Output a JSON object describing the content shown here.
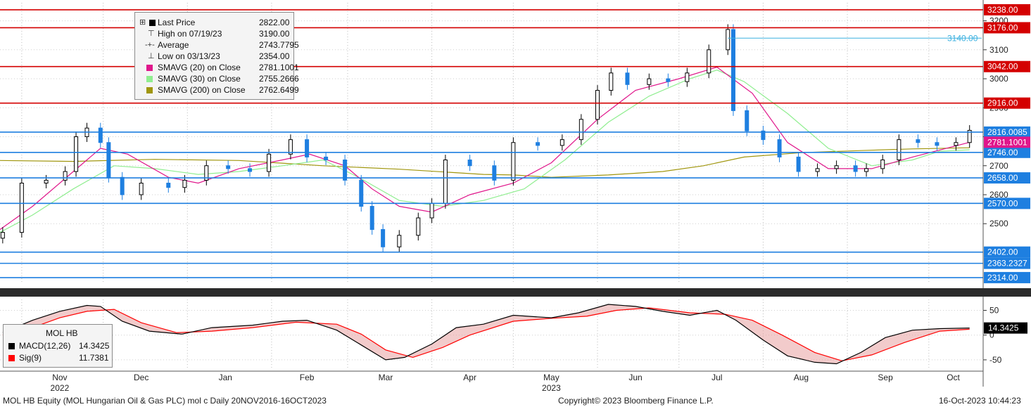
{
  "footer": {
    "left": "MOL HB Equity (MOL Hungarian Oil & Gas PLC) mol c  Daily 20NOV2016-16OCT2023",
    "center": "Copyright© 2023 Bloomberg Finance L.P.",
    "right": "16-Oct-2023 10:44:23"
  },
  "price_legend": {
    "rows": [
      {
        "label": "Last Price",
        "value": "2822.00",
        "marker": "square",
        "color": "#000000"
      },
      {
        "label": "High on 07/19/23",
        "value": "3190.00",
        "marker": "high-glyph"
      },
      {
        "label": "Average",
        "value": "2743.7795",
        "marker": "avg-glyph"
      },
      {
        "label": "Low on 03/13/23",
        "value": "2354.00",
        "marker": "low-glyph"
      },
      {
        "label": "SMAVG (20)  on Close",
        "value": "2781.1001",
        "marker": "square",
        "color": "#e0168b"
      },
      {
        "label": "SMAVG (30)  on Close",
        "value": "2755.2666",
        "marker": "square",
        "color": "#90ee90"
      },
      {
        "label": "SMAVG (200)  on Close",
        "value": "2762.6499",
        "marker": "square",
        "color": "#a0960e"
      }
    ]
  },
  "macd_legend": {
    "title": "MOL HB",
    "rows": [
      {
        "label": "MACD(12,26)",
        "value": "14.3425",
        "color": "#000000"
      },
      {
        "label": "Sig(9)",
        "value": "11.7381",
        "color": "#ff0000"
      }
    ]
  },
  "colors": {
    "up_candle": "#000000",
    "down_candle": "#1e7fe0",
    "sma20": "#e0168b",
    "sma30": "#90ee90",
    "sma200": "#a0960e",
    "macd": "#000000",
    "signal": "#ff0000",
    "level_red": "#d40000",
    "level_blue": "#1e7fe0"
  },
  "chart_data": {
    "type": "candlestick",
    "security": "MOL HB Equity",
    "price_axis": {
      "ticks": [
        "3200",
        "3100",
        "3000",
        "2900",
        "2800",
        "2700",
        "2600",
        "2500"
      ],
      "ylim": [
        2292,
        3262
      ]
    },
    "x_labels": [
      {
        "label": "Nov",
        "year": "2022"
      },
      {
        "label": "Dec"
      },
      {
        "label": "Jan"
      },
      {
        "label": "Feb"
      },
      {
        "label": "Mar"
      },
      {
        "label": "Apr"
      },
      {
        "label": "May",
        "year": "2023"
      },
      {
        "label": "Jun"
      },
      {
        "label": "Jul"
      },
      {
        "label": "Aug"
      },
      {
        "label": "Sep"
      },
      {
        "label": "Oct"
      }
    ],
    "close_series": [
      {
        "date": "2022-10-25",
        "close": 2470
      },
      {
        "date": "2022-11-01",
        "close": 2640
      },
      {
        "date": "2022-11-10",
        "close": 2650
      },
      {
        "date": "2022-11-17",
        "close": 2680
      },
      {
        "date": "2022-11-21",
        "close": 2800
      },
      {
        "date": "2022-11-25",
        "close": 2830
      },
      {
        "date": "2022-11-30",
        "close": 2780
      },
      {
        "date": "2022-12-03",
        "close": 2660
      },
      {
        "date": "2022-12-08",
        "close": 2600
      },
      {
        "date": "2022-12-15",
        "close": 2640
      },
      {
        "date": "2022-12-25",
        "close": 2625
      },
      {
        "date": "2022-12-31",
        "close": 2650
      },
      {
        "date": "2023-01-08",
        "close": 2700
      },
      {
        "date": "2023-01-16",
        "close": 2690
      },
      {
        "date": "2023-01-24",
        "close": 2680
      },
      {
        "date": "2023-01-31",
        "close": 2740
      },
      {
        "date": "2023-02-08",
        "close": 2790
      },
      {
        "date": "2023-02-14",
        "close": 2730
      },
      {
        "date": "2023-02-21",
        "close": 2720
      },
      {
        "date": "2023-02-28",
        "close": 2650
      },
      {
        "date": "2023-03-06",
        "close": 2560
      },
      {
        "date": "2023-03-10",
        "close": 2480
      },
      {
        "date": "2023-03-14",
        "close": 2420
      },
      {
        "date": "2023-03-20",
        "close": 2460
      },
      {
        "date": "2023-03-27",
        "close": 2520
      },
      {
        "date": "2023-04-01",
        "close": 2570
      },
      {
        "date": "2023-04-06",
        "close": 2720
      },
      {
        "date": "2023-04-15",
        "close": 2700
      },
      {
        "date": "2023-04-24",
        "close": 2650
      },
      {
        "date": "2023-05-01",
        "close": 2780
      },
      {
        "date": "2023-05-10",
        "close": 2770
      },
      {
        "date": "2023-05-19",
        "close": 2790
      },
      {
        "date": "2023-05-26",
        "close": 2860
      },
      {
        "date": "2023-06-01",
        "close": 2960
      },
      {
        "date": "2023-06-06",
        "close": 3020
      },
      {
        "date": "2023-06-12",
        "close": 2980
      },
      {
        "date": "2023-06-20",
        "close": 3000
      },
      {
        "date": "2023-06-27",
        "close": 2990
      },
      {
        "date": "2023-07-04",
        "close": 3020
      },
      {
        "date": "2023-07-12",
        "close": 3100
      },
      {
        "date": "2023-07-19",
        "close": 3170
      },
      {
        "date": "2023-07-21",
        "close": 2890
      },
      {
        "date": "2023-07-26",
        "close": 2820
      },
      {
        "date": "2023-08-01",
        "close": 2790
      },
      {
        "date": "2023-08-07",
        "close": 2730
      },
      {
        "date": "2023-08-14",
        "close": 2680
      },
      {
        "date": "2023-08-21",
        "close": 2690
      },
      {
        "date": "2023-08-28",
        "close": 2700
      },
      {
        "date": "2023-09-04",
        "close": 2680
      },
      {
        "date": "2023-09-08",
        "close": 2690
      },
      {
        "date": "2023-09-14",
        "close": 2720
      },
      {
        "date": "2023-09-20",
        "close": 2790
      },
      {
        "date": "2023-09-27",
        "close": 2780
      },
      {
        "date": "2023-10-04",
        "close": 2770
      },
      {
        "date": "2023-10-11",
        "close": 2780
      },
      {
        "date": "2023-10-16",
        "close": 2822
      }
    ],
    "levels": [
      {
        "value": 3238,
        "label": "3238.00",
        "color": "#d40000"
      },
      {
        "value": 3176,
        "label": "3176.00",
        "color": "#d40000"
      },
      {
        "value": 3042,
        "label": "3042.00",
        "color": "#d40000"
      },
      {
        "value": 2916,
        "label": "2916.00",
        "color": "#d40000"
      },
      {
        "value": 2816.0085,
        "label": "2816.0085",
        "color": "#1e7fe0"
      },
      {
        "value": 2746,
        "label": "2746.00",
        "color": "#1e7fe0"
      },
      {
        "value": 2658,
        "label": "2658.00",
        "color": "#1e7fe0"
      },
      {
        "value": 2570,
        "label": "2570.00",
        "color": "#1e7fe0"
      },
      {
        "value": 2402,
        "label": "2402.00",
        "color": "#1e7fe0"
      },
      {
        "value": 2363.2327,
        "label": "2363.2327",
        "color": "#1e7fe0"
      },
      {
        "value": 2314,
        "label": "2314.00",
        "color": "#1e7fe0"
      }
    ],
    "badges": [
      {
        "label": "2781.1001",
        "color": "#e0168b"
      }
    ],
    "annotation": {
      "value": 3140,
      "label": "3140.00",
      "color": "#3ab0e0"
    },
    "macd_panel": {
      "ticks": [
        "50",
        "0",
        "-50"
      ],
      "ylim": [
        -70,
        72
      ],
      "macd_last": "14.3425",
      "macd": [
        {
          "date": "2022-10-25",
          "v": 5
        },
        {
          "date": "2022-11-05",
          "v": 30
        },
        {
          "date": "2022-11-15",
          "v": 48
        },
        {
          "date": "2022-11-25",
          "v": 60
        },
        {
          "date": "2022-11-30",
          "v": 58
        },
        {
          "date": "2022-12-08",
          "v": 28
        },
        {
          "date": "2022-12-18",
          "v": 8
        },
        {
          "date": "2022-12-30",
          "v": 2
        },
        {
          "date": "2023-01-10",
          "v": 15
        },
        {
          "date": "2023-01-25",
          "v": 20
        },
        {
          "date": "2023-02-05",
          "v": 28
        },
        {
          "date": "2023-02-14",
          "v": 30
        },
        {
          "date": "2023-02-25",
          "v": 10
        },
        {
          "date": "2023-03-06",
          "v": -20
        },
        {
          "date": "2023-03-15",
          "v": -50
        },
        {
          "date": "2023-03-22",
          "v": -45
        },
        {
          "date": "2023-04-01",
          "v": -18
        },
        {
          "date": "2023-04-10",
          "v": 15
        },
        {
          "date": "2023-04-20",
          "v": 22
        },
        {
          "date": "2023-05-01",
          "v": 40
        },
        {
          "date": "2023-05-15",
          "v": 35
        },
        {
          "date": "2023-05-25",
          "v": 45
        },
        {
          "date": "2023-06-05",
          "v": 62
        },
        {
          "date": "2023-06-15",
          "v": 58
        },
        {
          "date": "2023-06-25",
          "v": 48
        },
        {
          "date": "2023-07-05",
          "v": 40
        },
        {
          "date": "2023-07-15",
          "v": 50
        },
        {
          "date": "2023-07-22",
          "v": 30
        },
        {
          "date": "2023-08-01",
          "v": -10
        },
        {
          "date": "2023-08-10",
          "v": -42
        },
        {
          "date": "2023-08-20",
          "v": -55
        },
        {
          "date": "2023-08-28",
          "v": -58
        },
        {
          "date": "2023-09-06",
          "v": -35
        },
        {
          "date": "2023-09-15",
          "v": -5
        },
        {
          "date": "2023-09-25",
          "v": 10
        },
        {
          "date": "2023-10-05",
          "v": 13
        },
        {
          "date": "2023-10-16",
          "v": 14.34
        }
      ],
      "signal": [
        {
          "date": "2022-10-25",
          "v": 0
        },
        {
          "date": "2022-11-05",
          "v": 15
        },
        {
          "date": "2022-11-15",
          "v": 35
        },
        {
          "date": "2022-11-25",
          "v": 48
        },
        {
          "date": "2022-12-05",
          "v": 52
        },
        {
          "date": "2022-12-15",
          "v": 25
        },
        {
          "date": "2022-12-28",
          "v": 5
        },
        {
          "date": "2023-01-10",
          "v": 8
        },
        {
          "date": "2023-01-25",
          "v": 15
        },
        {
          "date": "2023-02-10",
          "v": 26
        },
        {
          "date": "2023-02-25",
          "v": 22
        },
        {
          "date": "2023-03-06",
          "v": 2
        },
        {
          "date": "2023-03-15",
          "v": -30
        },
        {
          "date": "2023-03-25",
          "v": -45
        },
        {
          "date": "2023-04-05",
          "v": -25
        },
        {
          "date": "2023-04-15",
          "v": 0
        },
        {
          "date": "2023-05-01",
          "v": 28
        },
        {
          "date": "2023-05-15",
          "v": 34
        },
        {
          "date": "2023-05-28",
          "v": 38
        },
        {
          "date": "2023-06-08",
          "v": 50
        },
        {
          "date": "2023-06-20",
          "v": 55
        },
        {
          "date": "2023-07-05",
          "v": 45
        },
        {
          "date": "2023-07-18",
          "v": 42
        },
        {
          "date": "2023-07-28",
          "v": 30
        },
        {
          "date": "2023-08-08",
          "v": 0
        },
        {
          "date": "2023-08-20",
          "v": -35
        },
        {
          "date": "2023-08-30",
          "v": -52
        },
        {
          "date": "2023-09-10",
          "v": -40
        },
        {
          "date": "2023-09-22",
          "v": -15
        },
        {
          "date": "2023-10-05",
          "v": 8
        },
        {
          "date": "2023-10-16",
          "v": 11.74
        }
      ]
    }
  }
}
